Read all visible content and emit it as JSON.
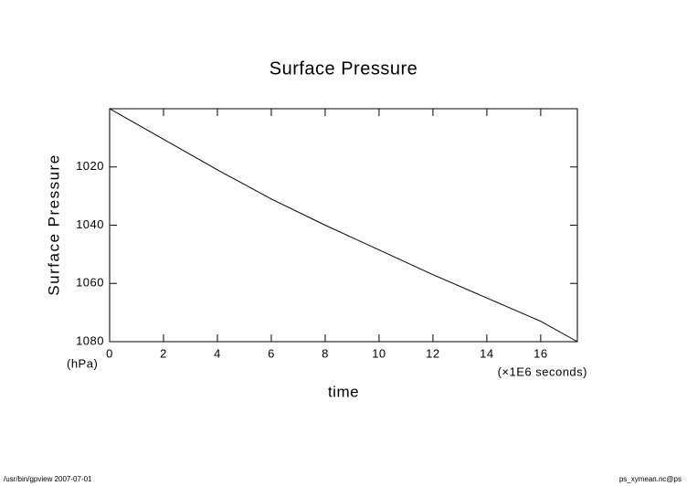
{
  "chart_data": {
    "type": "line",
    "title": "Surface Pressure",
    "y_label": "Surface Pressure",
    "y_unit": "(hPa)",
    "x_label": "time",
    "x_unit": "(×1E6 seconds)",
    "x": [
      0,
      2,
      4,
      6,
      8,
      10,
      12,
      14,
      16,
      17.36
    ],
    "series": [
      {
        "name": "Surface Pressure",
        "color": "#000000",
        "values": [
          1000,
          1010.5,
          1021,
          1031,
          1040,
          1048.5,
          1057,
          1065,
          1073,
          1080
        ]
      }
    ],
    "xlim": [
      0,
      17.36
    ],
    "xticks": [
      0,
      2,
      4,
      6,
      8,
      10,
      12,
      14,
      16
    ],
    "ylim": [
      1080,
      1000
    ],
    "yticks": [
      1020,
      1040,
      1060,
      1080
    ],
    "footer_left": "/usr/bin/gpview  2007-07-01",
    "footer_right": "ps_xymean.nc@ps"
  }
}
